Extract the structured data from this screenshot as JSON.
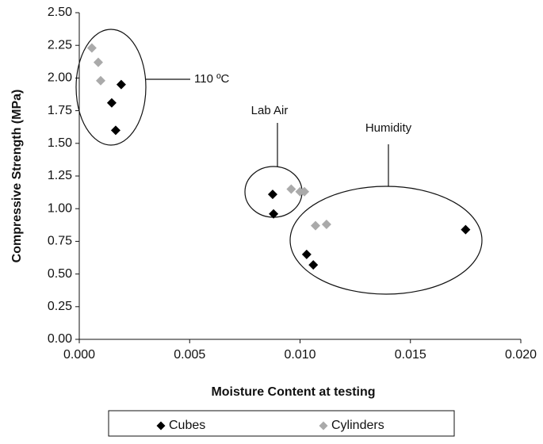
{
  "chart_data": {
    "type": "scatter",
    "x_label": "Moisture Content at testing",
    "y_label": "Compressive Strength (MPa)",
    "xlim": [
      0,
      0.02
    ],
    "ylim": [
      0,
      2.5
    ],
    "xticks": [
      {
        "value": 0,
        "label": "0.000"
      },
      {
        "value": 0.005,
        "label": "0.005"
      },
      {
        "value": 0.01,
        "label": "0.010"
      },
      {
        "value": 0.015,
        "label": "0.015"
      },
      {
        "value": 0.02,
        "label": "0.020"
      }
    ],
    "yticks": [
      {
        "value": 0,
        "label": "0.00"
      },
      {
        "value": 0.25,
        "label": "0.25"
      },
      {
        "value": 0.5,
        "label": "0.50"
      },
      {
        "value": 0.75,
        "label": "0.75"
      },
      {
        "value": 1,
        "label": "1.00"
      },
      {
        "value": 1.25,
        "label": "1.25"
      },
      {
        "value": 1.5,
        "label": "1.50"
      },
      {
        "value": 1.75,
        "label": "1.75"
      },
      {
        "value": 2,
        "label": "2.00"
      },
      {
        "value": 2.25,
        "label": "2.25"
      },
      {
        "value": 2.5,
        "label": "2.50"
      }
    ],
    "series": [
      {
        "name": "Cubes",
        "color": "#000000",
        "x": [
          0.0019,
          0.00147,
          0.00165,
          0.00876,
          0.0088,
          0.0103,
          0.0106,
          0.0175
        ],
        "values": [
          1.95,
          1.81,
          1.6,
          1.11,
          0.96,
          0.65,
          0.57,
          0.84
        ]
      },
      {
        "name": "Cylinders",
        "color": "#aaaaaa",
        "x": [
          0.00057,
          0.00086,
          0.00097,
          0.0096,
          0.01,
          0.0102,
          0.0107,
          0.0112
        ],
        "values": [
          2.23,
          2.12,
          1.98,
          1.15,
          1.13,
          1.13,
          0.87,
          0.88
        ]
      }
    ],
    "annotations": [
      "110 ºC",
      "Lab Air",
      "Humidity"
    ]
  }
}
